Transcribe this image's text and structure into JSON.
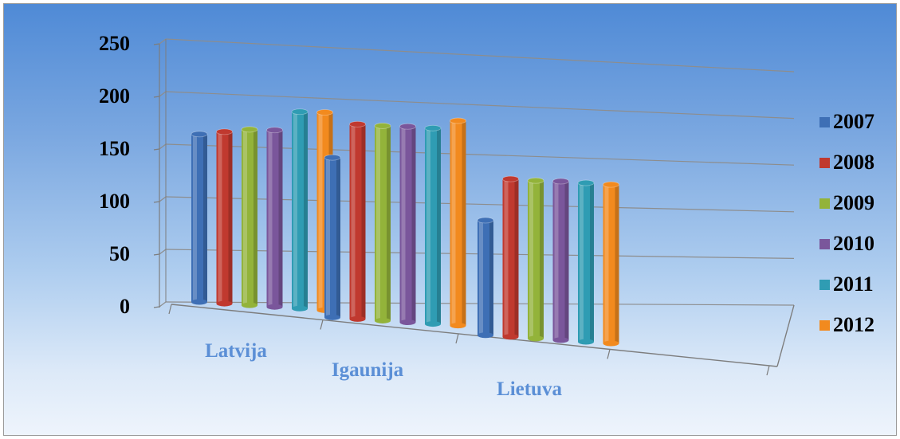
{
  "chart_data": {
    "type": "bar",
    "categories": [
      "Latvija",
      "Igaunija",
      "Lietuva"
    ],
    "series": [
      {
        "name": "2007",
        "values": [
          168,
          160,
          115
        ],
        "color": "#3e6fb5"
      },
      {
        "name": "2008",
        "values": [
          172,
          195,
          158
        ],
        "color": "#c0392f"
      },
      {
        "name": "2009",
        "values": [
          176,
          195,
          158
        ],
        "color": "#93b33a"
      },
      {
        "name": "2010",
        "values": [
          177,
          196,
          159
        ],
        "color": "#7a569b"
      },
      {
        "name": "2011",
        "values": [
          197,
          196,
          159
        ],
        "color": "#2f9cb3"
      },
      {
        "name": "2012",
        "values": [
          198,
          205,
          159
        ],
        "color": "#f28a1e"
      }
    ],
    "yticks": [
      "0",
      "50",
      "100",
      "150",
      "200",
      "250"
    ],
    "ylim": [
      0,
      250
    ],
    "grid": true,
    "legend": "right",
    "projection": "3d-perspective"
  }
}
